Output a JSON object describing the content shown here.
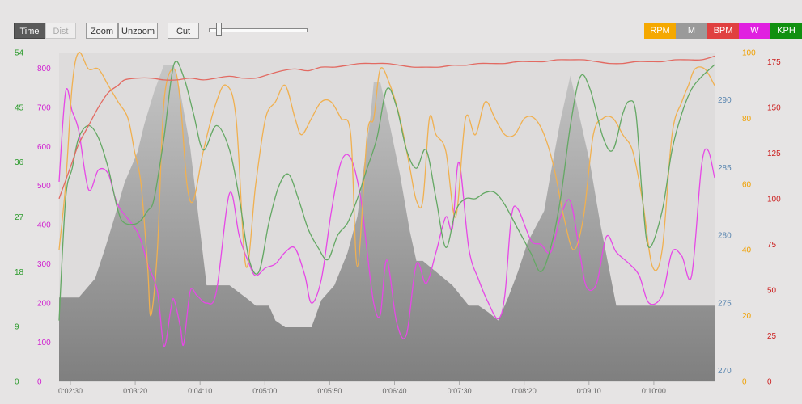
{
  "toolbar": {
    "time_label": "Time",
    "dist_label": "Dist",
    "zoom_label": "Zoom",
    "unzoom_label": "Unzoom",
    "cut_label": "Cut",
    "slider_value": 0.08
  },
  "legend": [
    {
      "label": "RPM",
      "color": "#f5a800"
    },
    {
      "label": "M",
      "color": "#9a9a9a"
    },
    {
      "label": "BPM",
      "color": "#e04040"
    },
    {
      "label": "W",
      "color": "#e020e0"
    },
    {
      "label": "KPH",
      "color": "#109010"
    }
  ],
  "chart_data": {
    "type": "line",
    "x_ticks": [
      "0:02:30",
      "0:03:20",
      "0:04:10",
      "0:05:00",
      "0:05:50",
      "0:06:40",
      "0:07:30",
      "0:08:20",
      "0:09:10",
      "0:10:00"
    ],
    "axes": {
      "kph": {
        "ticks": [
          "0",
          "9",
          "18",
          "27",
          "36",
          "45",
          "54"
        ],
        "range": [
          0,
          54
        ],
        "color": "#2a9a2a"
      },
      "w": {
        "ticks": [
          "0",
          "100",
          "200",
          "300",
          "400",
          "500",
          "600",
          "700",
          "800"
        ],
        "range": [
          0,
          840
        ],
        "color": "#d020d0"
      },
      "m": {
        "ticks": [
          "270",
          "275",
          "280",
          "285",
          "290"
        ],
        "range": [
          269.2,
          293.5
        ],
        "color": "#5a86b0"
      },
      "rpm": {
        "ticks": [
          "0",
          "20",
          "40",
          "60",
          "80",
          "100"
        ],
        "range": [
          0,
          100
        ],
        "color": "#f0a000"
      },
      "bpm": {
        "ticks": [
          "0",
          "25",
          "50",
          "75",
          "100",
          "125",
          "150",
          "175"
        ],
        "range": [
          0,
          180
        ],
        "color": "#cc2020"
      }
    },
    "series": [
      {
        "name": "M",
        "axis": "m",
        "type": "area",
        "color": "#8c8c8c",
        "x": [
          0,
          0.03,
          0.055,
          0.07,
          0.085,
          0.1,
          0.115,
          0.12,
          0.13,
          0.145,
          0.16,
          0.175,
          0.185,
          0.2,
          0.225,
          0.235,
          0.24,
          0.26,
          0.29,
          0.3,
          0.32,
          0.33,
          0.345,
          0.36,
          0.385,
          0.4,
          0.42,
          0.44,
          0.455,
          0.465,
          0.475,
          0.48,
          0.49,
          0.5,
          0.52,
          0.535,
          0.545,
          0.555,
          0.6,
          0.625,
          0.64,
          0.655,
          0.67,
          0.685,
          0.7,
          0.715,
          0.74,
          0.75,
          0.765,
          0.78,
          0.81,
          0.825,
          0.85,
          0.87,
          0.89,
          1.0
        ],
        "y": [
          275.4,
          275.4,
          276.8,
          279,
          281.4,
          283.9,
          285.6,
          286.2,
          288.2,
          290.6,
          292.6,
          292.6,
          290.6,
          286.5,
          276.3,
          276.3,
          276.3,
          276.3,
          275.2,
          274.8,
          274.8,
          273.7,
          273.2,
          273.2,
          273.2,
          275.2,
          276.3,
          278.7,
          281.4,
          285.1,
          288.8,
          291.3,
          291.3,
          289.2,
          284.5,
          280.3,
          278.1,
          278.1,
          276.3,
          274.8,
          274.8,
          274.3,
          273.7,
          275.4,
          277.3,
          279.5,
          281.8,
          284.6,
          288.5,
          291.8,
          285.3,
          281,
          274.8,
          274.8,
          274.8,
          274.8
        ]
      },
      {
        "name": "W",
        "axis": "w",
        "type": "line",
        "color": "#e648e6",
        "x": [
          0,
          0.01,
          0.02,
          0.03,
          0.045,
          0.06,
          0.075,
          0.09,
          0.12,
          0.135,
          0.15,
          0.16,
          0.17,
          0.175,
          0.185,
          0.19,
          0.2,
          0.21,
          0.225,
          0.24,
          0.26,
          0.275,
          0.29,
          0.3,
          0.315,
          0.33,
          0.345,
          0.36,
          0.375,
          0.385,
          0.4,
          0.415,
          0.43,
          0.445,
          0.46,
          0.47,
          0.48,
          0.49,
          0.5,
          0.515,
          0.53,
          0.545,
          0.56,
          0.575,
          0.59,
          0.6,
          0.61,
          0.625,
          0.64,
          0.655,
          0.67,
          0.68,
          0.69,
          0.7,
          0.72,
          0.735,
          0.75,
          0.765,
          0.78,
          0.795,
          0.805,
          0.82,
          0.835,
          0.85,
          0.87,
          0.885,
          0.9,
          0.92,
          0.935,
          0.95,
          0.965,
          0.98,
          0.99,
          1.0
        ],
        "y": [
          510,
          740,
          690,
          640,
          490,
          540,
          530,
          450,
          380,
          300,
          230,
          90,
          180,
          210,
          140,
          95,
          230,
          220,
          200,
          230,
          480,
          370,
          300,
          270,
          290,
          300,
          330,
          340,
          270,
          200,
          260,
          430,
          560,
          570,
          470,
          330,
          200,
          170,
          310,
          150,
          120,
          300,
          250,
          330,
          420,
          390,
          560,
          340,
          260,
          200,
          160,
          220,
          420,
          440,
          360,
          350,
          330,
          420,
          460,
          320,
          240,
          250,
          370,
          330,
          300,
          270,
          200,
          220,
          330,
          320,
          270,
          550,
          590,
          520
        ]
      },
      {
        "name": "RPM",
        "axis": "rpm",
        "type": "line",
        "color": "#f0b050",
        "x": [
          0,
          0.01,
          0.02,
          0.03,
          0.045,
          0.06,
          0.075,
          0.09,
          0.105,
          0.115,
          0.125,
          0.135,
          0.14,
          0.15,
          0.16,
          0.175,
          0.185,
          0.195,
          0.205,
          0.22,
          0.24,
          0.255,
          0.27,
          0.285,
          0.3,
          0.315,
          0.33,
          0.345,
          0.36,
          0.37,
          0.385,
          0.4,
          0.415,
          0.43,
          0.445,
          0.455,
          0.47,
          0.48,
          0.49,
          0.505,
          0.52,
          0.535,
          0.545,
          0.555,
          0.565,
          0.575,
          0.59,
          0.605,
          0.62,
          0.635,
          0.65,
          0.665,
          0.68,
          0.695,
          0.71,
          0.725,
          0.74,
          0.755,
          0.77,
          0.785,
          0.8,
          0.815,
          0.83,
          0.845,
          0.86,
          0.875,
          0.89,
          0.905,
          0.92,
          0.935,
          0.95,
          0.96,
          0.97,
          0.985,
          1.0
        ],
        "y": [
          40,
          60,
          90,
          100,
          95,
          95,
          90,
          85,
          80,
          70,
          60,
          35,
          20,
          40,
          85,
          95,
          85,
          60,
          55,
          70,
          85,
          90,
          80,
          35,
          60,
          80,
          85,
          90,
          80,
          75,
          80,
          85,
          85,
          80,
          75,
          35,
          75,
          80,
          95,
          90,
          80,
          65,
          55,
          55,
          80,
          75,
          70,
          50,
          80,
          75,
          85,
          80,
          75,
          75,
          80,
          80,
          75,
          65,
          50,
          40,
          50,
          75,
          80,
          80,
          75,
          70,
          55,
          35,
          40,
          75,
          85,
          90,
          95,
          95,
          90
        ]
      },
      {
        "name": "KPH",
        "axis": "kph",
        "type": "line",
        "color": "#64a864",
        "x": [
          0,
          0.01,
          0.02,
          0.03,
          0.045,
          0.06,
          0.075,
          0.09,
          0.1,
          0.12,
          0.135,
          0.145,
          0.16,
          0.175,
          0.19,
          0.205,
          0.22,
          0.24,
          0.26,
          0.275,
          0.29,
          0.305,
          0.32,
          0.335,
          0.35,
          0.365,
          0.38,
          0.395,
          0.41,
          0.425,
          0.44,
          0.455,
          0.47,
          0.485,
          0.5,
          0.515,
          0.53,
          0.545,
          0.56,
          0.575,
          0.59,
          0.605,
          0.62,
          0.635,
          0.65,
          0.665,
          0.68,
          0.7,
          0.72,
          0.735,
          0.75,
          0.765,
          0.78,
          0.795,
          0.81,
          0.83,
          0.845,
          0.86,
          0.87,
          0.88,
          0.89,
          0.9,
          0.92,
          0.935,
          0.95,
          0.965,
          0.98,
          1.0
        ],
        "y": [
          10,
          30,
          35,
          40,
          42,
          40,
          35,
          28,
          26,
          26,
          28,
          30,
          40,
          52,
          50,
          44,
          38,
          42,
          38,
          30,
          20,
          18,
          26,
          32,
          34,
          30,
          25,
          22,
          20,
          24,
          26,
          30,
          35,
          40,
          48,
          45,
          38,
          35,
          38,
          30,
          22,
          28,
          30,
          30,
          31,
          31,
          29,
          25,
          21,
          18,
          22,
          30,
          42,
          50,
          48,
          40,
          38,
          44,
          46,
          44,
          30,
          22,
          28,
          38,
          44,
          48,
          50,
          52
        ]
      },
      {
        "name": "BPM",
        "axis": "bpm",
        "type": "line",
        "color": "#e26a62",
        "x": [
          0,
          0.01,
          0.02,
          0.03,
          0.045,
          0.06,
          0.075,
          0.09,
          0.1,
          0.12,
          0.14,
          0.16,
          0.18,
          0.2,
          0.22,
          0.24,
          0.26,
          0.28,
          0.3,
          0.32,
          0.34,
          0.36,
          0.38,
          0.4,
          0.42,
          0.44,
          0.46,
          0.48,
          0.5,
          0.52,
          0.54,
          0.56,
          0.58,
          0.6,
          0.62,
          0.64,
          0.66,
          0.68,
          0.7,
          0.72,
          0.74,
          0.76,
          0.78,
          0.8,
          0.82,
          0.84,
          0.86,
          0.88,
          0.9,
          0.92,
          0.94,
          0.96,
          0.98,
          1.0
        ],
        "y": [
          100,
          110,
          120,
          130,
          140,
          150,
          158,
          162,
          165,
          166,
          166,
          165,
          165,
          166,
          165,
          166,
          167,
          166,
          166,
          168,
          170,
          171,
          170,
          172,
          172,
          173,
          174,
          174,
          174,
          173,
          172,
          172,
          172,
          173,
          173,
          174,
          174,
          174,
          175,
          175,
          175,
          176,
          176,
          176,
          175,
          174,
          174,
          175,
          175,
          175,
          176,
          176,
          176,
          178
        ]
      }
    ]
  }
}
